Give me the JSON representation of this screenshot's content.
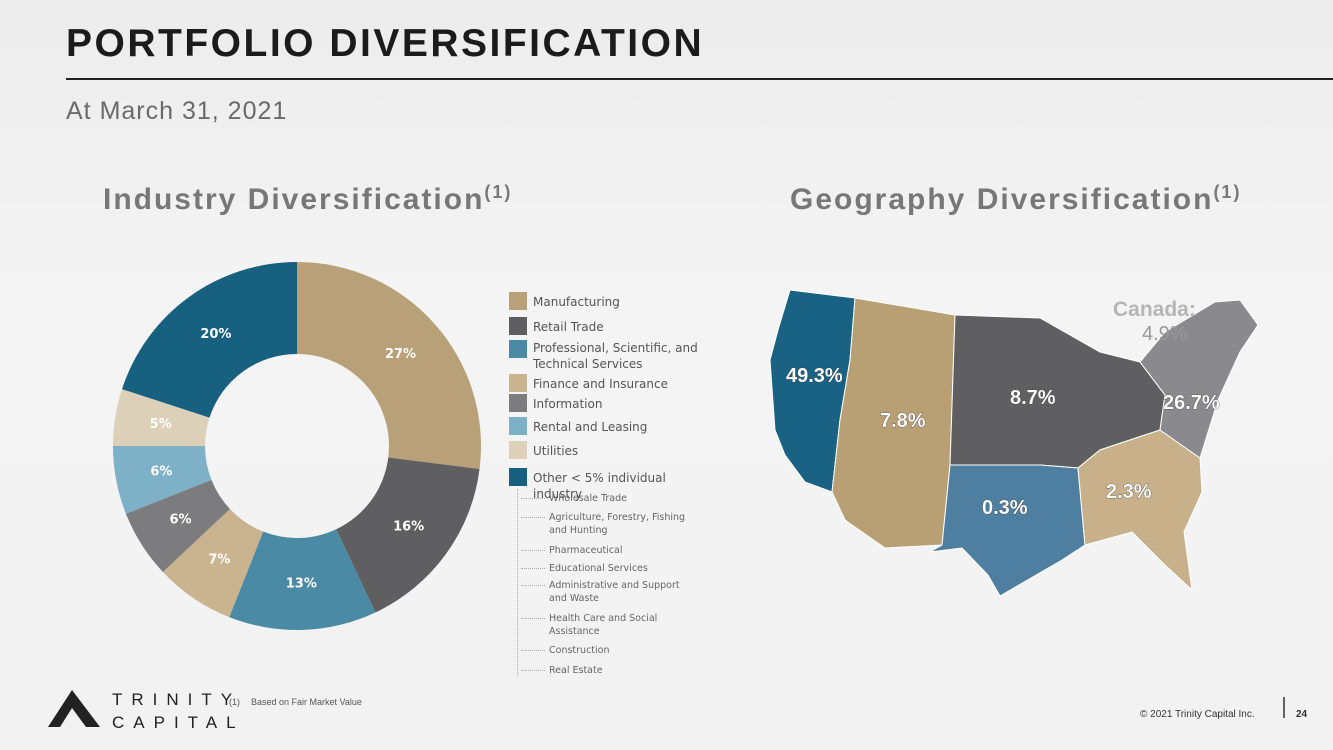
{
  "header": {
    "title": "PORTFOLIO DIVERSIFICATION",
    "subtitle": "At March 31, 2021"
  },
  "chart_data": {
    "type": "pie",
    "donut": true,
    "title": "Industry Diversification",
    "title_note": "(1)",
    "categories": [
      "Manufacturing",
      "Retail Trade",
      "Professional, Scientific, and Technical Services",
      "Finance and Insurance",
      "Information",
      "Rental and Leasing",
      "Utilities",
      "Other < 5% individual industry"
    ],
    "values": [
      27,
      16,
      13,
      7,
      6,
      6,
      5,
      20
    ],
    "value_labels": [
      "27%",
      "16%",
      "13%",
      "7%",
      "6%",
      "6%",
      "5%",
      "20%"
    ],
    "colors": [
      "#b8a078",
      "#5f5f62",
      "#4a8aa4",
      "#c9b48f",
      "#7c7c7f",
      "#7eb0c8",
      "#ddd0b8",
      "#17607f"
    ]
  },
  "other_industries": [
    "Wholesale Trade",
    "Agriculture, Forestry, Fishing and Hunting",
    "Pharmaceutical",
    "Educational Services",
    "Administrative and Support and Waste",
    "Health Care and Social Assistance",
    "Construction",
    "Real Estate"
  ],
  "geography": {
    "title": "Geography Diversification",
    "title_note": "(1)",
    "regions": [
      "49.3%",
      "7.8%",
      "8.7%",
      "0.3%",
      "2.3%",
      "26.7%"
    ],
    "canada_label": "Canada:",
    "canada_value": "4.9%"
  },
  "footnote": {
    "marker": "(1)",
    "text": "Based on Fair Market Value"
  },
  "footer": {
    "logo_top": "TRINITY",
    "logo_bottom": "CAPITAL",
    "copyright": "© 2021 Trinity Capital Inc.",
    "page": "24"
  }
}
